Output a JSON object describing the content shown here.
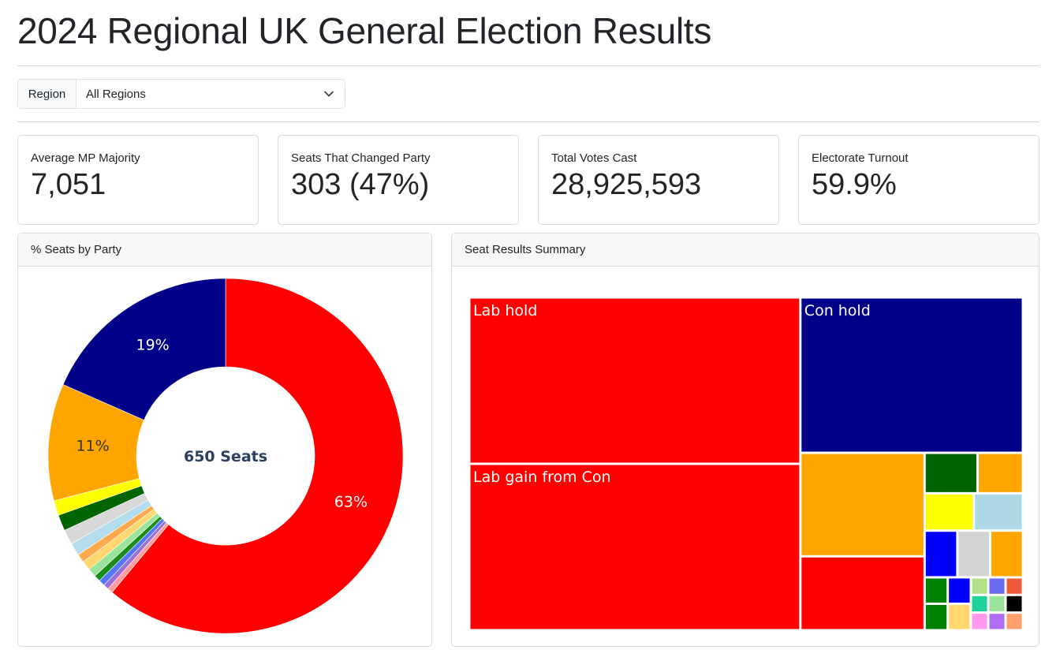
{
  "title": "2024 Regional UK General Election Results",
  "filter": {
    "label": "Region",
    "selected": "All Regions"
  },
  "kpis": [
    {
      "label": "Average MP Majority",
      "value": "7,051"
    },
    {
      "label": "Seats That Changed Party",
      "value": "303 (47%)"
    },
    {
      "label": "Total Votes Cast",
      "value": "28,925,593"
    },
    {
      "label": "Electorate Turnout",
      "value": "59.9%"
    }
  ],
  "donut": {
    "header": "% Seats by Party",
    "center_label": "650 Seats"
  },
  "treemap": {
    "header": "Seat Results Summary"
  },
  "chart_data": [
    {
      "type": "pie",
      "title": "% Seats by Party",
      "center_text": "650 Seats",
      "slices": [
        {
          "value": 63,
          "label": "63%",
          "color": "#ff0000",
          "label_color": "#ffffff"
        },
        {
          "value": 0.5,
          "label": "",
          "color": "#ff9c9c"
        },
        {
          "value": 0.5,
          "label": "",
          "color": "#9a6fd6"
        },
        {
          "value": 0.6,
          "label": "",
          "color": "#5577ff"
        },
        {
          "value": 0.6,
          "label": "",
          "color": "#1a8c1a"
        },
        {
          "value": 0.8,
          "label": "",
          "color": "#9be29b"
        },
        {
          "value": 0.9,
          "label": "",
          "color": "#ffd76e"
        },
        {
          "value": 0.8,
          "label": "",
          "color": "#ffa94d"
        },
        {
          "value": 1.2,
          "label": "",
          "color": "#b3dcec"
        },
        {
          "value": 1.4,
          "label": "",
          "color": "#d8d8d8"
        },
        {
          "value": 1.5,
          "label": "",
          "color": "#006400"
        },
        {
          "value": 1.4,
          "label": "",
          "color": "#ffff00"
        },
        {
          "value": 11,
          "label": "11%",
          "color": "#ffa500",
          "label_color": "#333333"
        },
        {
          "value": 19,
          "label": "19%",
          "color": "#000088",
          "label_color": "#ffffff"
        }
      ]
    },
    {
      "type": "treemap",
      "title": "Seat Results Summary",
      "tiles": [
        {
          "label": "Lab hold",
          "value": 180,
          "color": "#ff0000"
        },
        {
          "label": "Lab gain from Con",
          "value": 180,
          "color": "#ff0000"
        },
        {
          "label": "Con hold",
          "value": 113,
          "color": "#000088"
        },
        {
          "label": "",
          "value": 42,
          "color": "#ffa500"
        },
        {
          "label": "",
          "value": 30,
          "color": "#ff0000"
        },
        {
          "label": "",
          "value": 6,
          "color": "#ffa500"
        },
        {
          "label": "",
          "value": 6,
          "color": "#ffff00"
        },
        {
          "label": "",
          "value": 7,
          "color": "#006400"
        },
        {
          "label": "",
          "value": 5,
          "color": "#0000ff"
        },
        {
          "label": "",
          "value": 5,
          "color": "#d3d3d3"
        },
        {
          "label": "",
          "value": 6,
          "color": "#add8e6"
        },
        {
          "label": "",
          "value": 5,
          "color": "#ffa500"
        },
        {
          "label": "",
          "value": 2,
          "color": "#008000"
        },
        {
          "label": "",
          "value": 2,
          "color": "#008000"
        },
        {
          "label": "",
          "value": 2,
          "color": "#0000ff"
        },
        {
          "label": "",
          "value": 1,
          "color": "#b5e08a"
        },
        {
          "label": "",
          "value": 1,
          "color": "#6c6cf2"
        },
        {
          "label": "",
          "value": 1,
          "color": "#f05a3c"
        },
        {
          "label": "",
          "value": 1,
          "color": "#1fd19b"
        },
        {
          "label": "",
          "value": 2,
          "color": "#ffd76e"
        },
        {
          "label": "",
          "value": 1,
          "color": "#ff99ee"
        },
        {
          "label": "",
          "value": 1,
          "color": "#9be29b"
        },
        {
          "label": "",
          "value": 1,
          "color": "#000000"
        },
        {
          "label": "",
          "value": 1,
          "color": "#b06cf2"
        },
        {
          "label": "",
          "value": 1,
          "color": "#ff9f6e"
        }
      ]
    }
  ]
}
